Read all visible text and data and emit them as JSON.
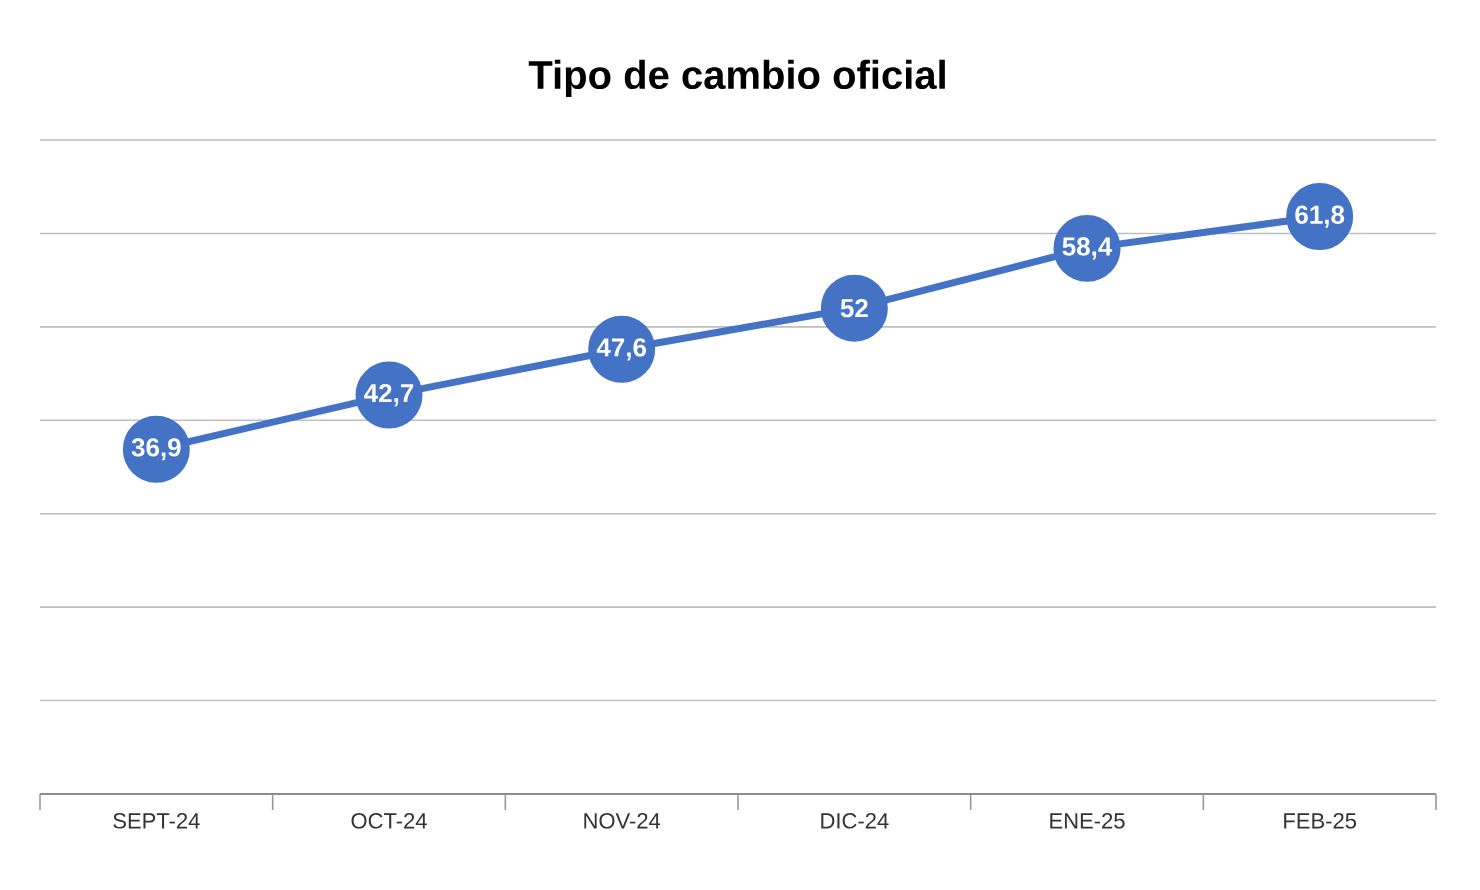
{
  "chart_data": {
    "type": "line",
    "title": "Tipo de cambio oficial",
    "categories": [
      "SEPT-24",
      "OCT-24",
      "NOV-24",
      "DIC-24",
      "ENE-25",
      "FEB-25"
    ],
    "series": [
      {
        "color": "#4472c4",
        "values": [
          36.9,
          42.7,
          47.6,
          52,
          58.4,
          61.8
        ],
        "value_labels": [
          "36,9",
          "42,7",
          "47,6",
          "52",
          "58,4",
          "61,8"
        ]
      }
    ],
    "ylim": [
      0,
      70
    ],
    "yticks": [
      {
        "value": 0,
        "label": null
      },
      {
        "value": 10,
        "label": null
      },
      {
        "value": 20,
        "label": null
      },
      {
        "value": 30,
        "label": null
      },
      {
        "value": 40,
        "label": null
      },
      {
        "value": 50,
        "label": null
      },
      {
        "value": 60,
        "label": null
      },
      {
        "value": 70,
        "label": null
      }
    ],
    "tick_labels": "x",
    "grid": "y",
    "marker": "circle",
    "line_style": "solid"
  }
}
